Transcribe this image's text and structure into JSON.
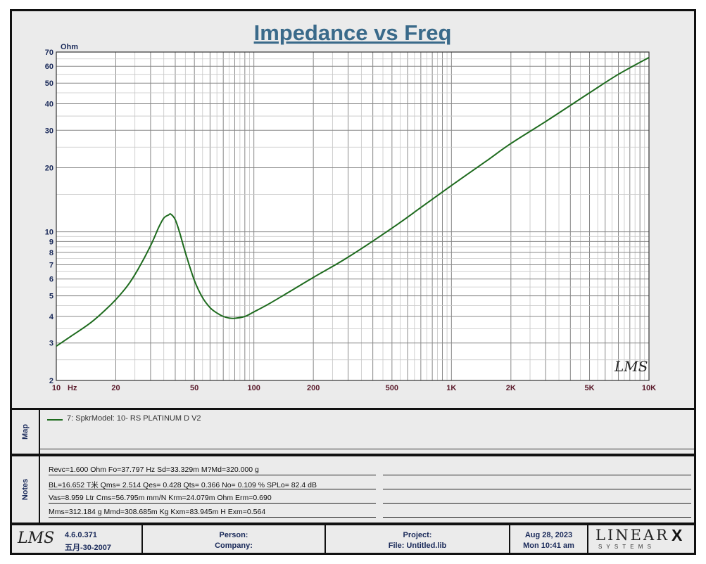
{
  "chart_data": {
    "type": "line",
    "title": "Impedance vs Freq",
    "xlabel": "Hz",
    "ylabel": "Ohm",
    "x_scale": "log",
    "y_scale": "log",
    "xlim": [
      10,
      10000
    ],
    "ylim": [
      2,
      70
    ],
    "x_ticks": [
      {
        "value": 10,
        "label": "10"
      },
      {
        "value": 20,
        "label": "20"
      },
      {
        "value": 50,
        "label": "50"
      },
      {
        "value": 100,
        "label": "100"
      },
      {
        "value": 200,
        "label": "200"
      },
      {
        "value": 500,
        "label": "500"
      },
      {
        "value": 1000,
        "label": "1K"
      },
      {
        "value": 2000,
        "label": "2K"
      },
      {
        "value": 5000,
        "label": "5K"
      },
      {
        "value": 10000,
        "label": "10K"
      }
    ],
    "y_ticks": [
      2,
      3,
      4,
      5,
      6,
      7,
      8,
      9,
      10,
      20,
      30,
      40,
      50,
      60,
      70
    ],
    "grid": true,
    "series": [
      {
        "name": "7: SpkrModel: 10- RS PLATINUM D   V2",
        "color": "#1e6b1e",
        "x": [
          10,
          12,
          15,
          18,
          20,
          23,
          26,
          30,
          33,
          35,
          37,
          38,
          40,
          42,
          45,
          50,
          55,
          60,
          65,
          70,
          75,
          80,
          90,
          100,
          120,
          150,
          200,
          300,
          500,
          700,
          1000,
          1500,
          2000,
          3000,
          5000,
          7000,
          10000
        ],
        "y": [
          2.9,
          3.25,
          3.75,
          4.35,
          4.8,
          5.6,
          6.7,
          8.6,
          10.5,
          11.6,
          12.0,
          12.1,
          11.4,
          10.0,
          8.0,
          5.9,
          4.9,
          4.4,
          4.15,
          4.0,
          3.93,
          3.92,
          4.0,
          4.2,
          4.6,
          5.2,
          6.1,
          7.6,
          10.4,
          13.0,
          16.5,
          21.5,
          26.0,
          33.0,
          45.0,
          55.0,
          66.0
        ]
      }
    ]
  },
  "map": {
    "label": "Map",
    "legend_text": "7: SpkrModel: 10- RS PLATINUM D   V2"
  },
  "notes": {
    "label": "Notes",
    "lines": [
      "Revc=1.600 Ohm  Fo=37.797 Hz  Sd=33.329m M?Md=320.000 g",
      "BL=16.652 T米  Qms= 2.514  Qes= 0.428  Qts= 0.366  No= 0.109 %  SPLo= 82.4 dB",
      "Vas=8.959 Ltr  Cms=56.795m mm/N  Krm=24.079m Ohm  Erm=0.690",
      "Mms=312.184 g  Mmd=308.685m Kg  Kxm=83.945m H  Exm=0.564"
    ]
  },
  "watermark": "LMS",
  "footer": {
    "logo": "LMS",
    "version": "4.6.0.371",
    "version_date": "五月-30-2007",
    "person_label": "Person:",
    "company_label": "Company:",
    "project_label": "Project:",
    "file_label": "File: Untitled.lib",
    "date": "Aug 28, 2023",
    "time": "Mon 10:41 am",
    "brand": "LINEAR",
    "brand_x": "X",
    "brand_sub": "S Y S T E M S"
  }
}
